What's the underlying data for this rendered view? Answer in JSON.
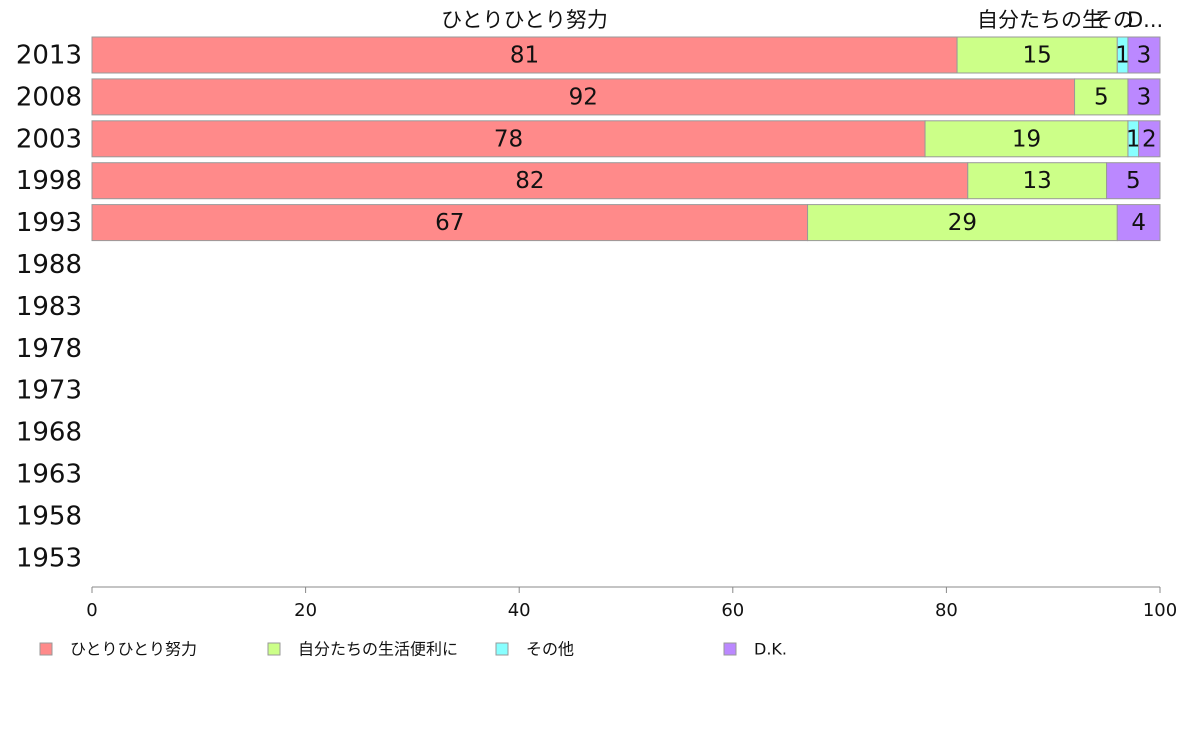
{
  "chart_data": {
    "type": "bar",
    "orientation": "horizontal",
    "stacked": true,
    "categories": [
      "2013",
      "2008",
      "2003",
      "1998",
      "1993",
      "1988",
      "1983",
      "1978",
      "1973",
      "1968",
      "1963",
      "1958",
      "1953"
    ],
    "series": [
      {
        "name": "ひとりひとり努力",
        "header_label": "ひとりひとり努力",
        "color": "#ff8a8a",
        "values": [
          81,
          92,
          78,
          82,
          67,
          null,
          null,
          null,
          null,
          null,
          null,
          null,
          null
        ]
      },
      {
        "name": "自分たちの生活便利に",
        "header_label": "自分たちの生活便利に",
        "color": "#ccff88",
        "values": [
          15,
          5,
          19,
          13,
          29,
          null,
          null,
          null,
          null,
          null,
          null,
          null,
          null
        ]
      },
      {
        "name": "その他",
        "header_label": "その他",
        "color": "#88ffff",
        "values": [
          1,
          0,
          1,
          0,
          0,
          null,
          null,
          null,
          null,
          null,
          null,
          null,
          null
        ]
      },
      {
        "name": "D.K.",
        "header_label": "D.K.",
        "color": "#bb88ff",
        "values": [
          3,
          3,
          2,
          5,
          4,
          null,
          null,
          null,
          null,
          null,
          null,
          null,
          null
        ]
      }
    ],
    "xlim": [
      0,
      100
    ],
    "xticks": [
      0,
      20,
      40,
      60,
      80,
      100
    ],
    "title": "",
    "xlabel": "",
    "ylabel": "",
    "legend_position": "bottom-left",
    "grid": false,
    "stroke_color": "#999999",
    "axis_color": "#888888"
  }
}
